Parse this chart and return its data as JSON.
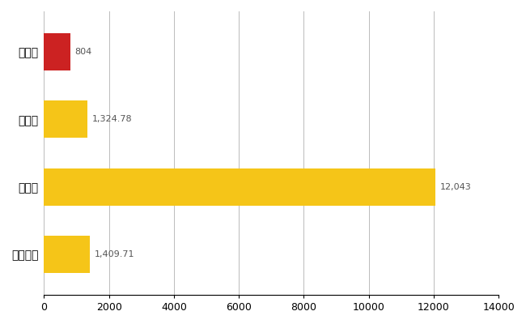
{
  "categories": [
    "全国平均",
    "県最大",
    "県平均",
    "吉川市"
  ],
  "values": [
    1409.71,
    12043,
    1324.78,
    804
  ],
  "colors": [
    "#F5C518",
    "#F5C518",
    "#F5C518",
    "#CC2222"
  ],
  "labels": [
    "1,409.71",
    "12,043",
    "1,324.78",
    "804"
  ],
  "xlim": [
    0,
    14000
  ],
  "xticks": [
    0,
    2000,
    4000,
    6000,
    8000,
    10000,
    12000,
    14000
  ],
  "bar_height": 0.55,
  "label_fontsize": 8,
  "tick_fontsize": 9,
  "ytick_fontsize": 10,
  "bg_color": "#ffffff",
  "grid_color": "#bbbbbb"
}
